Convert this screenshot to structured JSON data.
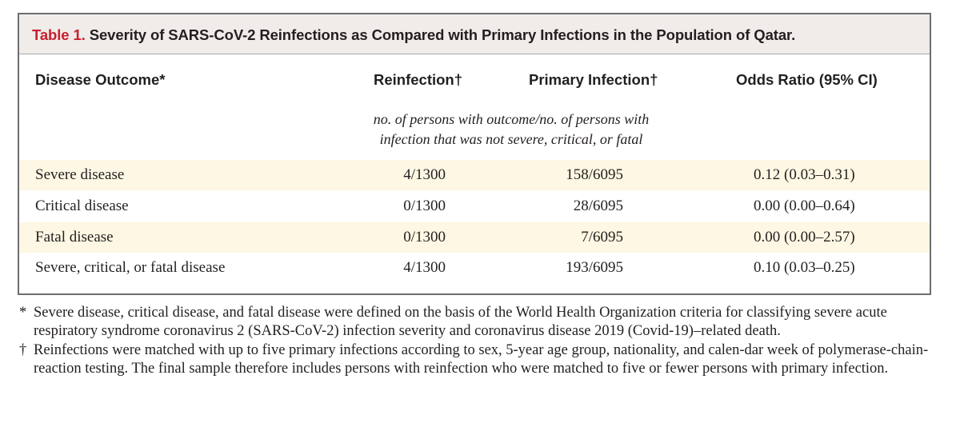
{
  "table": {
    "title_label": "Table 1.",
    "title_text": " Severity of SARS-CoV-2 Reinfections as Compared with Primary Infections in the Population of Qatar.",
    "headers": {
      "outcome": "Disease Outcome*",
      "reinfection": "Reinfection†",
      "primary": "Primary Infection†",
      "odds": "Odds Ratio (95% CI)"
    },
    "unit_note": {
      "line1": "no. of persons with outcome/no. of persons with",
      "line2": "infection that was not severe, critical, or fatal"
    },
    "rows": [
      {
        "outcome": "Severe disease",
        "reinfection": "4/1300",
        "primary": "158/6095",
        "odds": "0.12 (0.03–0.31)"
      },
      {
        "outcome": "Critical disease",
        "reinfection": "0/1300",
        "primary": "28/6095",
        "odds": "0.00 (0.00–0.64)"
      },
      {
        "outcome": "Fatal disease",
        "reinfection": "0/1300",
        "primary": "7/6095",
        "odds": "0.00 (0.00–2.57)"
      },
      {
        "outcome": "Severe, critical, or fatal disease",
        "reinfection": "4/1300",
        "primary": "193/6095",
        "odds": "0.10 (0.03–0.25)"
      }
    ]
  },
  "footnotes": [
    {
      "mark": "*",
      "text": "Severe disease, critical disease, and fatal disease were defined on the basis of the World Health Organization criteria for classifying severe acute respiratory syndrome coronavirus 2 (SARS-CoV-2) infection severity and coronavirus disease 2019 (Covid-19)–related death."
    },
    {
      "mark": "†",
      "text": "Reinfections were matched with up to five primary infections according to sex, 5-year age group, nationality, and calen-dar week of polymerase-chain-reaction testing. The final sample therefore includes persons with reinfection who were matched to five or fewer persons with primary infection."
    }
  ],
  "colors": {
    "accent_red": "#c8202f",
    "title_bg": "#f0ece9",
    "row_shade": "#fdf7e3",
    "border": "#6d6e71"
  }
}
